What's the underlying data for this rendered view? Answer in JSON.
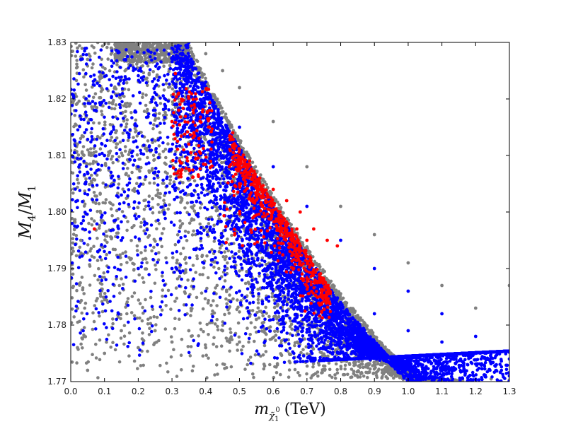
{
  "chart_data": {
    "type": "scatter",
    "xlabel": "m_χ̃₁⁰ (TeV)",
    "xlabel_parts": {
      "main": "m",
      "sub": "χ̃",
      "subsub": "1",
      "sup": "0",
      "unit": "(TeV)"
    },
    "ylabel": "M₄/M₁",
    "ylabel_parts": {
      "a": "M",
      "a_sub": "4",
      "slash": "/",
      "b": "M",
      "b_sub": "1"
    },
    "xlim": [
      0.0,
      1.3
    ],
    "ylim": [
      1.77,
      1.83
    ],
    "x_ticks": [
      "0.0",
      "0.1",
      "0.2",
      "0.3",
      "0.4",
      "0.5",
      "0.6",
      "0.7",
      "0.8",
      "0.9",
      "1.0",
      "1.1",
      "1.2",
      "1.3"
    ],
    "y_ticks": [
      "1.77",
      "1.78",
      "1.79",
      "1.80",
      "1.81",
      "1.82",
      "1.83"
    ],
    "grid": false,
    "legend": "none",
    "series": [
      {
        "color": "#808080",
        "description_points": [
          [
            0.02,
            1.829
          ],
          [
            0.05,
            1.827
          ],
          [
            0.08,
            1.83
          ],
          [
            0.12,
            1.829
          ],
          [
            0.16,
            1.83
          ],
          [
            0.2,
            1.83
          ],
          [
            0.25,
            1.83
          ],
          [
            0.3,
            1.83
          ],
          [
            0.33,
            1.829
          ],
          [
            0.02,
            1.812
          ],
          [
            0.03,
            1.795
          ],
          [
            0.02,
            1.776
          ],
          [
            0.05,
            1.772
          ],
          [
            0.1,
            1.775
          ],
          [
            0.15,
            1.779
          ],
          [
            0.2,
            1.776
          ],
          [
            0.25,
            1.779
          ],
          [
            0.3,
            1.777
          ],
          [
            0.35,
            1.779
          ],
          [
            0.4,
            1.776
          ],
          [
            0.45,
            1.779
          ],
          [
            0.5,
            1.777
          ],
          [
            0.55,
            1.781
          ],
          [
            0.4,
            1.828
          ],
          [
            0.45,
            1.825
          ],
          [
            0.5,
            1.822
          ],
          [
            0.6,
            1.816
          ],
          [
            0.7,
            1.808
          ],
          [
            0.8,
            1.801
          ],
          [
            0.9,
            1.796
          ],
          [
            1.0,
            1.791
          ],
          [
            1.1,
            1.787
          ],
          [
            1.2,
            1.783
          ],
          [
            1.3,
            1.787
          ]
        ]
      },
      {
        "color": "#0000ff",
        "description_points": [
          [
            0.03,
            1.827
          ],
          [
            0.07,
            1.818
          ],
          [
            0.1,
            1.81
          ],
          [
            0.15,
            1.803
          ],
          [
            0.2,
            1.808
          ],
          [
            0.25,
            1.818
          ],
          [
            0.3,
            1.829
          ],
          [
            0.35,
            1.83
          ],
          [
            0.02,
            1.802
          ],
          [
            0.08,
            1.793
          ],
          [
            0.15,
            1.795
          ],
          [
            0.2,
            1.79
          ],
          [
            0.3,
            1.79
          ],
          [
            0.35,
            1.785
          ],
          [
            0.4,
            1.786
          ],
          [
            0.5,
            1.786
          ],
          [
            0.6,
            1.781
          ],
          [
            0.4,
            1.823
          ],
          [
            0.5,
            1.815
          ],
          [
            0.6,
            1.808
          ],
          [
            0.7,
            1.801
          ],
          [
            0.8,
            1.795
          ],
          [
            0.9,
            1.79
          ],
          [
            1.0,
            1.786
          ],
          [
            1.1,
            1.782
          ],
          [
            1.2,
            1.778
          ],
          [
            1.3,
            1.774
          ],
          [
            0.7,
            1.789
          ],
          [
            0.8,
            1.784
          ],
          [
            0.9,
            1.782
          ],
          [
            1.0,
            1.779
          ],
          [
            1.1,
            1.777
          ],
          [
            1.2,
            1.775
          ],
          [
            1.3,
            1.771
          ]
        ]
      },
      {
        "color": "#ff0000",
        "description_points": [
          [
            0.31,
            1.8245
          ],
          [
            0.32,
            1.818
          ],
          [
            0.3,
            1.816
          ],
          [
            0.35,
            1.812
          ],
          [
            0.38,
            1.813
          ],
          [
            0.33,
            1.8075
          ],
          [
            0.48,
            1.814
          ],
          [
            0.5,
            1.811
          ],
          [
            0.53,
            1.809
          ],
          [
            0.56,
            1.806
          ],
          [
            0.6,
            1.804
          ],
          [
            0.64,
            1.802
          ],
          [
            0.68,
            1.8
          ],
          [
            0.72,
            1.797
          ],
          [
            0.76,
            1.795
          ],
          [
            0.79,
            1.794
          ],
          [
            0.47,
            1.808
          ],
          [
            0.5,
            1.805
          ],
          [
            0.55,
            1.803
          ],
          [
            0.62,
            1.8
          ],
          [
            0.67,
            1.797
          ],
          [
            0.7,
            1.795
          ],
          [
            0.07,
            1.797
          ]
        ]
      }
    ]
  }
}
